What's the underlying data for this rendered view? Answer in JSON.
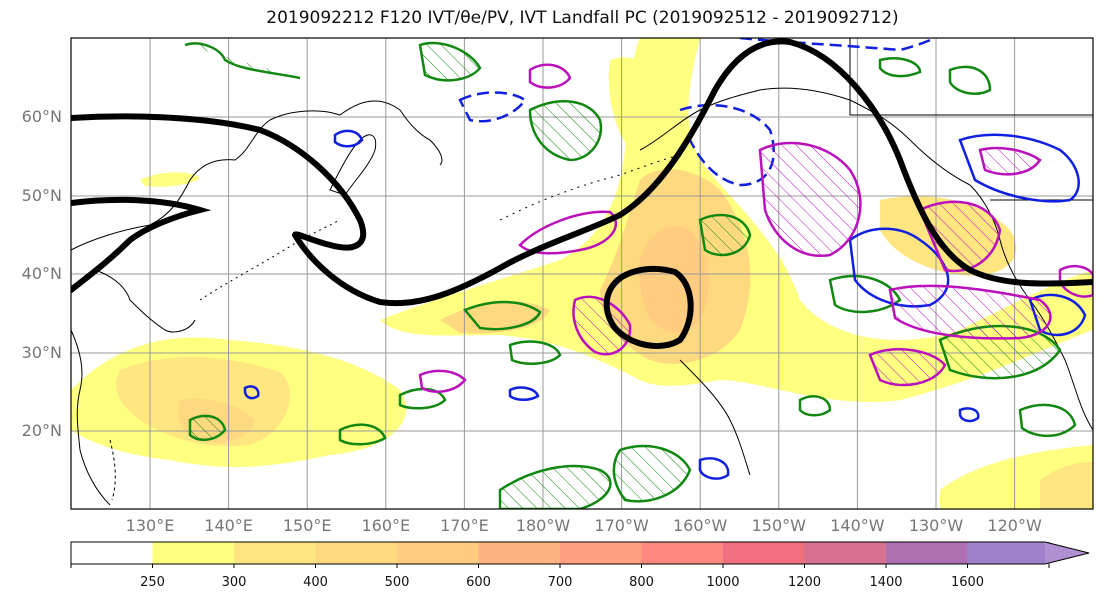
{
  "title": "2019092212 F120 IVT/θe/PV, IVT Landfall PC (2019092512 - 2019092712)",
  "lat_labels": [
    "60°N",
    "50°N",
    "40°N",
    "30°N",
    "20°N"
  ],
  "lon_labels": [
    "130°E",
    "140°E",
    "150°E",
    "160°E",
    "170°E",
    "180°W",
    "170°W",
    "160°W",
    "150°W",
    "140°W",
    "130°W",
    "120°W"
  ],
  "colorbar": {
    "levels": [
      "250",
      "300",
      "400",
      "500",
      "600",
      "700",
      "800",
      "1000",
      "1200",
      "1400",
      "1600"
    ],
    "colors": [
      "#ffffff",
      "#ffff80",
      "#ffe680",
      "#ffd980",
      "#ffcc80",
      "#ffb380",
      "#ffa080",
      "#ff8880",
      "#f07080",
      "#d87090",
      "#b070b0",
      "#a080c8",
      "#b090d0"
    ]
  },
  "colors": {
    "ivt_fill": "#ffe680",
    "pv_contour": "#000000",
    "green_contour": "#118811",
    "blue_contour": "#1020e0",
    "magenta_contour": "#bb10bb",
    "coastline": "#000000",
    "grid": "#999999"
  }
}
